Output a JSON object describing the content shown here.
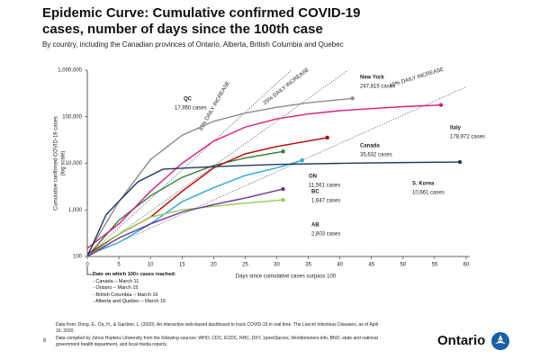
{
  "chart_data": {
    "type": "line",
    "title": "Epidemic Curve: Cumulative confirmed COVID-19 cases, number of days since the 100th case",
    "subtitle": "By country, including the Canadian provinces of Ontario, Alberta, British Columbia and Quebec",
    "y_label": [
      "Cumulative confirmed COVID-19 cases",
      "(log scale)"
    ],
    "x_label": "Days since cumulative cases surpass 100",
    "log_y": true,
    "xlim": [
      0,
      60
    ],
    "xticks": [
      0,
      5,
      10,
      15,
      20,
      25,
      30,
      35,
      40,
      45,
      50,
      55,
      60
    ],
    "ylim": [
      100,
      1000000
    ],
    "yticks": [
      {
        "value": 100,
        "label": "100"
      },
      {
        "value": 1000,
        "label": "1,000"
      },
      {
        "value": 10000,
        "label": "10,000"
      },
      {
        "value": 100000,
        "label": "100,000"
      },
      {
        "value": 1000000,
        "label": "1,000,000"
      }
    ],
    "growth_lines": [
      {
        "label": "33% DAILY INCREASE",
        "rate": 33
      },
      {
        "label": "25% DAILY INCREASE",
        "rate": 25
      },
      {
        "label": "15% DAILY INCREASE",
        "rate": 15
      }
    ],
    "series": [
      {
        "name": "New York",
        "color": "#8c8c8c",
        "end_label": "247,815 cases",
        "x": [
          0,
          5,
          10,
          15,
          20,
          25,
          30,
          35,
          42
        ],
        "values": [
          110,
          1500,
          12000,
          40000,
          80000,
          120000,
          160000,
          200000,
          247815
        ]
      },
      {
        "name": "QC",
        "color": "#2e7d32",
        "end_label": "17,950 cases",
        "x": [
          0,
          5,
          10,
          15,
          20,
          25,
          31
        ],
        "values": [
          100,
          600,
          2000,
          5000,
          9000,
          13000,
          17950
        ]
      },
      {
        "name": "Italy",
        "color": "#e0197d",
        "end_label": "178,972 cases",
        "x": [
          0,
          5,
          10,
          15,
          20,
          25,
          30,
          35,
          40,
          45,
          50,
          56
        ],
        "values": [
          150,
          500,
          2500,
          10000,
          30000,
          60000,
          90000,
          115000,
          135000,
          150000,
          165000,
          178972
        ]
      },
      {
        "name": "Canada",
        "color": "#c00000",
        "end_label": "35,632 cases",
        "x": [
          0,
          5,
          10,
          15,
          20,
          25,
          30,
          38
        ],
        "values": [
          110,
          300,
          700,
          2500,
          8000,
          16000,
          23000,
          35632
        ]
      },
      {
        "name": "ON",
        "color": "#29a9e0",
        "end_label": "11,561 cases",
        "x": [
          0,
          5,
          10,
          15,
          20,
          25,
          30,
          34
        ],
        "values": [
          110,
          200,
          500,
          1500,
          3000,
          5500,
          8000,
          11561
        ]
      },
      {
        "name": "S. Korea",
        "color": "#1f3864",
        "end_label": "10,661 cases",
        "x": [
          0,
          3,
          8,
          12,
          20,
          30,
          40,
          50,
          59
        ],
        "values": [
          100,
          800,
          4000,
          7500,
          8500,
          9500,
          10000,
          10400,
          10661
        ]
      },
      {
        "name": "BC",
        "color": "#92d050",
        "end_label": "1,647 cases",
        "x": [
          0,
          5,
          10,
          15,
          20,
          25,
          31
        ],
        "values": [
          100,
          300,
          700,
          1000,
          1200,
          1400,
          1647
        ]
      },
      {
        "name": "AB",
        "color": "#7030a0",
        "end_label": "2,803 cases",
        "x": [
          0,
          5,
          10,
          15,
          20,
          25,
          31
        ],
        "values": [
          100,
          250,
          500,
          900,
          1300,
          1800,
          2803
        ]
      }
    ]
  },
  "notes": {
    "heading": "Date on which 100+ cases reached:",
    "items": [
      "- Canada – March 11",
      "- Ontario – March 15",
      "- British Columbia – March 16",
      "- Alberta and Quebec – March 15"
    ]
  },
  "sources": [
    "Data from: Dong, E., Du, H., & Gardner, L. (2020). An interactive web-based dashboard to track COVID-19 in real time. The Lancet Infectious Diseases, as of April 16, 2020.",
    "Data compiled by Johns Hopkins University from the following sources: WHO, CDC, ECDC, NHC, DXY, 1point3acres, Worldometers.info, BNO, state and national government health department, and local media reports."
  ],
  "page_number": "6",
  "logo": "Ontario"
}
